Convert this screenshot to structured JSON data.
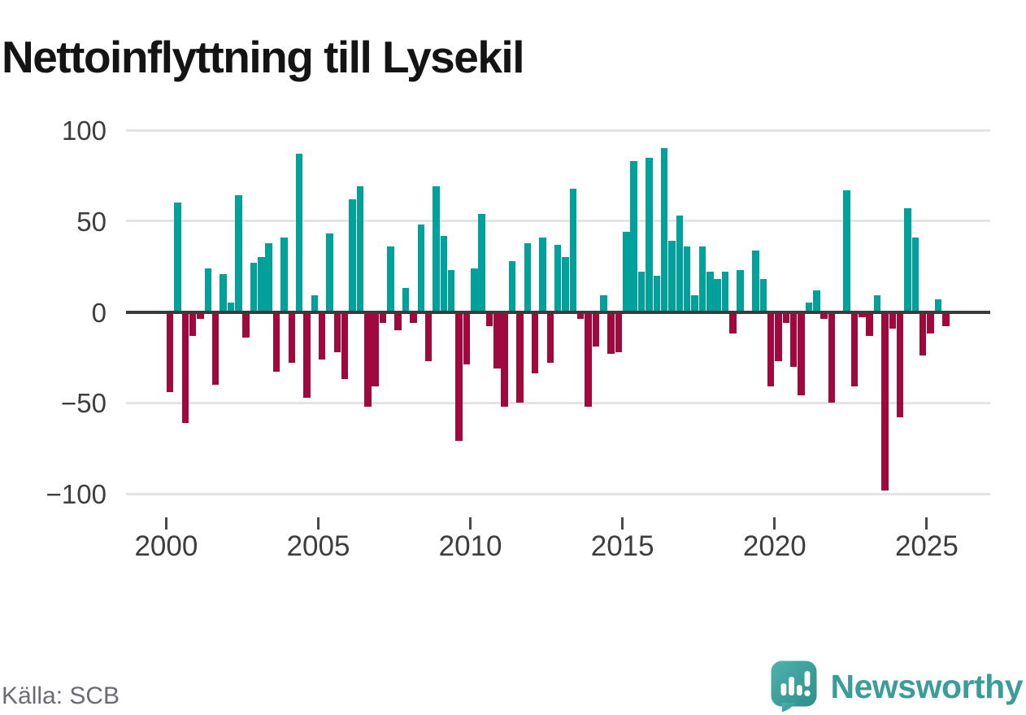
{
  "title": "Nettoinflyttning till Lysekil",
  "footer": {
    "source": "Källa: SCB",
    "brand": "Newsworthy"
  },
  "colors": {
    "positive": "#00a19b",
    "negative": "#a0093e",
    "title_text": "#141414",
    "axis_text": "#3d3d3d",
    "muted_text": "#6b6b74",
    "brand_teal": "#3a9d9a",
    "gridline": "#e4e4e4",
    "zero_line": "#3b3b3b"
  },
  "chart_data": {
    "type": "bar",
    "title": "Nettoinflyttning till Lysekil",
    "series_name": "Nettoinflyttning (netto per kvartal)",
    "frequency": "quarterly",
    "xlabel": "",
    "ylabel": "",
    "ylim": [
      -100,
      100
    ],
    "grid": "horizontal",
    "legend": "none",
    "yticks": [
      {
        "value": 100,
        "label": "100"
      },
      {
        "value": 50,
        "label": "50"
      },
      {
        "value": 0,
        "label": "0"
      },
      {
        "value": -50,
        "label": "−50"
      },
      {
        "value": -100,
        "label": "−100"
      }
    ],
    "xticks": [
      {
        "year": 2000,
        "label": "2000"
      },
      {
        "year": 2005,
        "label": "2005"
      },
      {
        "year": 2010,
        "label": "2010"
      },
      {
        "year": 2015,
        "label": "2015"
      },
      {
        "year": 2020,
        "label": "2020"
      },
      {
        "year": 2025,
        "label": "2025"
      }
    ],
    "categories": [
      "2000Q1",
      "2000Q2",
      "2000Q3",
      "2000Q4",
      "2001Q1",
      "2001Q2",
      "2001Q3",
      "2001Q4",
      "2002Q1",
      "2002Q2",
      "2002Q3",
      "2002Q4",
      "2003Q1",
      "2003Q2",
      "2003Q3",
      "2003Q4",
      "2004Q1",
      "2004Q2",
      "2004Q3",
      "2004Q4",
      "2005Q1",
      "2005Q2",
      "2005Q3",
      "2005Q4",
      "2006Q1",
      "2006Q2",
      "2006Q3",
      "2006Q4",
      "2007Q1",
      "2007Q2",
      "2007Q3",
      "2007Q4",
      "2008Q1",
      "2008Q2",
      "2008Q3",
      "2008Q4",
      "2009Q1",
      "2009Q2",
      "2009Q3",
      "2009Q4",
      "2010Q1",
      "2010Q2",
      "2010Q3",
      "2010Q4",
      "2011Q1",
      "2011Q2",
      "2011Q3",
      "2011Q4",
      "2012Q1",
      "2012Q2",
      "2012Q3",
      "2012Q4",
      "2013Q1",
      "2013Q2",
      "2013Q3",
      "2013Q4",
      "2014Q1",
      "2014Q2",
      "2014Q3",
      "2014Q4",
      "2015Q1",
      "2015Q2",
      "2015Q3",
      "2015Q4",
      "2016Q1",
      "2016Q2",
      "2016Q3",
      "2016Q4",
      "2017Q1",
      "2017Q2",
      "2017Q3",
      "2017Q4",
      "2018Q1",
      "2018Q2",
      "2018Q3",
      "2018Q4",
      "2019Q1",
      "2019Q2",
      "2019Q3",
      "2019Q4",
      "2020Q1",
      "2020Q2",
      "2020Q3",
      "2020Q4",
      "2021Q1",
      "2021Q2",
      "2021Q3",
      "2021Q4",
      "2022Q1",
      "2022Q2",
      "2022Q3",
      "2022Q4",
      "2023Q1",
      "2023Q2",
      "2023Q3",
      "2023Q4",
      "2024Q1",
      "2024Q2",
      "2024Q3",
      "2024Q4",
      "2025Q1",
      "2025Q2",
      "2025Q3"
    ],
    "values": [
      -44,
      60,
      -61,
      -13,
      -4,
      24,
      -40,
      21,
      5,
      64,
      -14,
      27,
      30,
      38,
      -33,
      41,
      -28,
      87,
      -47,
      9,
      -26,
      43,
      -22,
      -37,
      62,
      69,
      -52,
      -41,
      -6,
      36,
      -10,
      13,
      -6,
      48,
      -27,
      69,
      42,
      23,
      -71,
      -29,
      24,
      54,
      -8,
      -31,
      -52,
      28,
      -50,
      38,
      -34,
      41,
      -28,
      37,
      30,
      68,
      -4,
      -52,
      -19,
      9,
      -23,
      -22,
      44,
      83,
      22,
      85,
      20,
      90,
      39,
      53,
      36,
      9,
      36,
      22,
      18,
      22,
      -12,
      23,
      0,
      34,
      18,
      -41,
      -27,
      -6,
      -30,
      -46,
      5,
      12,
      -4,
      -50,
      0,
      67,
      -41,
      -3,
      -13,
      9,
      -98,
      -9,
      -58,
      57,
      41,
      -24,
      -12,
      7,
      -8
    ]
  }
}
